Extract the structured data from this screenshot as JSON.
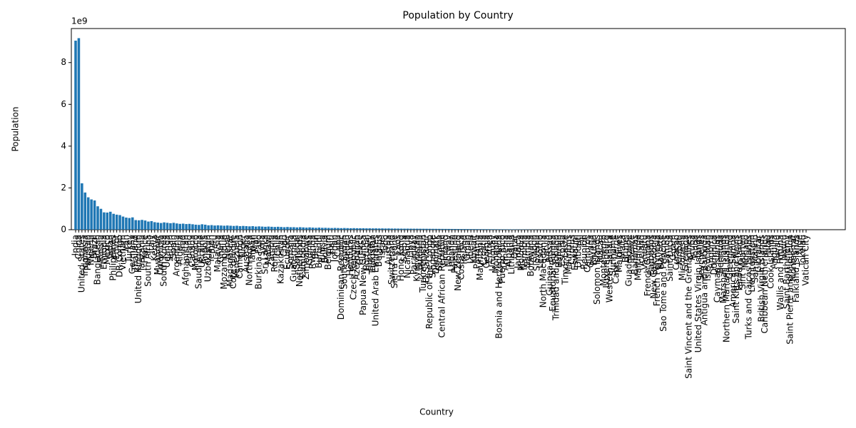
{
  "chart_data": {
    "type": "bar",
    "title": "Population by Country",
    "x_label": "Country",
    "y_label": "Population",
    "y_offset_label": "1e9",
    "color": "#1f77b4",
    "categories": [
      "India",
      "China",
      "United States",
      "Indonesia",
      "Pakistan",
      "Nigeria",
      "Brazil",
      "Bangladesh",
      "Russia",
      "Ethiopia",
      "Mexico",
      "Japan",
      "Philippines",
      "Egypt",
      "DR Congo",
      "Vietnam",
      "Iran",
      "Turkey",
      "Germany",
      "Thailand",
      "United Kingdom",
      "Tanzania",
      "France",
      "South Africa",
      "Italy",
      "Kenya",
      "Myanmar",
      "Colombia",
      "South Korea",
      "Uganda",
      "Sudan",
      "Spain",
      "Argentina",
      "Algeria",
      "Iraq",
      "Afghanistan",
      "Poland",
      "Canada",
      "Morocco",
      "Saudi Arabia",
      "Ukraine",
      "Angola",
      "Uzbekistan",
      "Yemen",
      "Peru",
      "Malaysia",
      "Ghana",
      "Mozambique",
      "Nepal",
      "Madagascar",
      "Cote d'Ivoire",
      "Venezuela",
      "Cameroon",
      "Niger",
      "Australia",
      "North Korea",
      "Taiwan",
      "Mali",
      "Burkina Faso",
      "Syria",
      "Sri Lanka",
      "Malawi",
      "Zambia",
      "Romania",
      "Chile",
      "Kazakhstan",
      "Chad",
      "Ecuador",
      "Somalia",
      "Guatemala",
      "Senegal",
      "Netherlands",
      "Cambodia",
      "Zimbabwe",
      "Guinea",
      "Rwanda",
      "Benin",
      "Burundi",
      "Tunisia",
      "Bolivia",
      "Belgium",
      "Haiti",
      "Jordan",
      "Cuba",
      "Dominican Republic",
      "South Sudan",
      "Sweden",
      "Honduras",
      "Czech Republic",
      "Azerbaijan",
      "Greece",
      "Papua New Guinea",
      "Portugal",
      "Hungary",
      "Tajikistan",
      "United Arab Emirates",
      "Belarus",
      "Israel",
      "Togo",
      "Austria",
      "Switzerland",
      "Sierra Leone",
      "Laos",
      "Hong Kong",
      "Serbia",
      "Nicaragua",
      "Libya",
      "Paraguay",
      "Kyrgyzstan",
      "Bulgaria",
      "Turkmenistan",
      "El Salvador",
      "Republic of the Congo",
      "Singapore",
      "Denmark",
      "Slovakia",
      "Central African Republic",
      "Finland",
      "Norway",
      "Lebanon",
      "Palestine",
      "New Zealand",
      "Costa Rica",
      "Ireland",
      "Oman",
      "Liberia",
      "Kuwait",
      "Panama",
      "Mauritania",
      "Croatia",
      "Georgia",
      "Eritrea",
      "Uruguay",
      "Mongolia",
      "Bosnia and Herzegovina",
      "Puerto Rico",
      "Armenia",
      "Albania",
      "Lithuania",
      "Qatar",
      "Jamaica",
      "Moldova",
      "Namibia",
      "Gambia",
      "Botswana",
      "Gabon",
      "Slovenia",
      "Lesotho",
      "North Macedonia",
      "Latvia",
      "Guinea-Bissau",
      "Equatorial Guinea",
      "Trinidad and Tobago",
      "Bahrain",
      "Estonia",
      "Timor-Leste",
      "Mauritius",
      "Cyprus",
      "Eswatini",
      "Djibouti",
      "Fiji",
      "Reunion",
      "Comoros",
      "Guyana",
      "Bhutan",
      "Solomon Islands",
      "Macau",
      "Montenegro",
      "Luxembourg",
      "Western Sahara",
      "Suriname",
      "Cape Verde",
      "Maldives",
      "Malta",
      "Brunei",
      "Guadeloupe",
      "Belize",
      "Bahamas",
      "Martinique",
      "Iceland",
      "Vanuatu",
      "French Guiana",
      "Barbados",
      "New Caledonia",
      "French Polynesia",
      "Mayotte",
      "Sao Tome and Principe",
      "Samoa",
      "Saint Lucia",
      "Guam",
      "Curacao",
      "Kiribati",
      "Micronesia",
      "Grenada",
      "Saint Vincent and the Grenadines",
      "Aruba",
      "Tonga",
      "United States Virgin Islands",
      "Seychelles",
      "Antigua and Barbuda",
      "Isle of Man",
      "Andorra",
      "Dominica",
      "Cayman Islands",
      "Bermuda",
      "Marshall Islands",
      "Northern Mariana Islands",
      "Greenland",
      "American Samoa",
      "Saint Kitts and Nevis",
      "Faroe Islands",
      "Sint Maarten",
      "Monaco",
      "Turks and Caicos Islands",
      "Liechtenstein",
      "San Marino",
      "Gibraltar",
      "British Virgin Islands",
      "Caribbean Netherlands",
      "Palau",
      "Cook Islands",
      "Anguilla",
      "Tuvalu",
      "Wallis and Futuna",
      "Nauru",
      "Saint Barthelemy",
      "Saint Pierre and Miquelon",
      "Montserrat",
      "Falkland Islands",
      "Niue",
      "Tokelau",
      "Vatican City"
    ],
    "values": [
      9.05,
      9.17,
      2.22,
      1.78,
      1.55,
      1.45,
      1.4,
      1.12,
      1.0,
      0.83,
      0.82,
      0.86,
      0.76,
      0.72,
      0.7,
      0.63,
      0.58,
      0.56,
      0.59,
      0.46,
      0.45,
      0.47,
      0.44,
      0.39,
      0.41,
      0.36,
      0.34,
      0.32,
      0.35,
      0.33,
      0.31,
      0.33,
      0.3,
      0.28,
      0.29,
      0.27,
      0.28,
      0.26,
      0.24,
      0.23,
      0.26,
      0.24,
      0.21,
      0.22,
      0.2,
      0.21,
      0.2,
      0.19,
      0.2,
      0.19,
      0.18,
      0.19,
      0.17,
      0.18,
      0.17,
      0.16,
      0.17,
      0.15,
      0.16,
      0.15,
      0.14,
      0.15,
      0.14,
      0.13,
      0.14,
      0.13,
      0.12,
      0.13,
      0.12,
      0.12,
      0.11,
      0.12,
      0.11,
      0.1,
      0.11,
      0.1,
      0.09,
      0.1,
      0.09,
      0.09,
      0.085,
      0.08,
      0.085,
      0.08,
      0.075,
      0.08,
      0.075,
      0.07,
      0.075,
      0.07,
      0.068,
      0.07,
      0.065,
      0.066,
      0.063,
      0.064,
      0.06,
      0.062,
      0.058,
      0.06,
      0.056,
      0.055,
      0.054,
      0.052,
      0.05,
      0.051,
      0.049,
      0.048,
      0.047,
      0.046,
      0.045,
      0.044,
      0.043,
      0.042,
      0.041,
      0.04,
      0.039,
      0.038,
      0.037,
      0.036,
      0.035,
      0.034,
      0.033,
      0.032,
      0.031,
      0.03,
      0.029,
      0.028,
      0.027,
      0.026,
      0.025,
      0.024,
      0.023,
      0.022,
      0.021,
      0.02,
      0.019,
      0.018,
      0.017,
      0.016,
      0.015,
      0.014,
      0.013,
      0.012,
      0.011,
      0.01,
      0.009,
      0.009,
      0.008,
      0.008,
      0.007,
      0.007,
      0.006,
      0.006,
      0.005,
      0.005,
      0.005,
      0.004,
      0.004,
      0.004,
      0.003,
      0.003,
      0.003,
      0.003,
      0.002,
      0.002,
      0.002,
      0.002,
      0.002,
      0.002,
      0.002,
      0.002,
      0.002,
      0.001,
      0.001,
      0.001,
      0.001,
      0.001,
      0.001,
      0.001,
      0.001,
      0.001,
      0.001,
      0.001,
      0.001,
      0.001,
      0.001,
      0.001,
      0.001,
      0.001,
      0.0005,
      0.0005,
      0.0005,
      0.0005,
      0.0005,
      0.0005,
      0.0005,
      0.0005,
      0.0005,
      0.0005,
      0.0003,
      0.0003,
      0.0003,
      0.0003,
      0.0003,
      0.0003,
      0.0003,
      0.0003,
      0.0003,
      0.0003,
      0.0002,
      0.0002,
      0.0002,
      0.0002,
      0.0002,
      0.0002,
      0.0002,
      0.0002,
      0.0002,
      0.0002,
      0.0001,
      0.0001,
      0.0001,
      0.0001,
      0.0001,
      0.0001,
      0.0001,
      0.0001,
      0.0001,
      0.0001,
      5e-05,
      1e-05
    ],
    "ylim": [
      0,
      9.63
    ],
    "yticks": [
      0,
      2,
      4,
      6,
      8
    ],
    "grid": false
  }
}
